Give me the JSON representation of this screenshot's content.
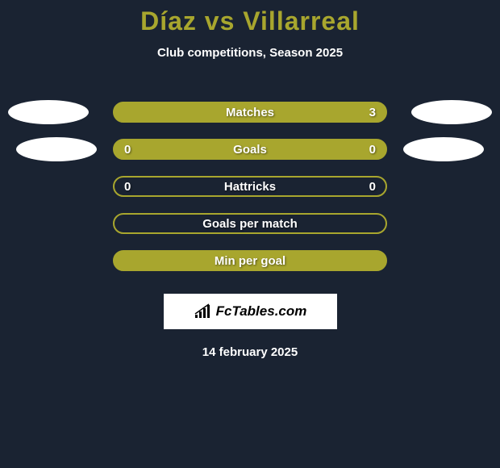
{
  "title_color": "#a8a62e",
  "player1": "Díaz",
  "vs_text": "vs",
  "player2": "Villarreal",
  "subtitle": "Club competitions, Season 2025",
  "background_color": "#1a2332",
  "text_color": "#ffffff",
  "side_ellipse_color": "#ffffff",
  "stats": [
    {
      "label": "Matches",
      "left_value": "",
      "right_value": "3",
      "fill_color": "#a8a62e",
      "border_color": "#a8a62e",
      "hollow": false
    },
    {
      "label": "Goals",
      "left_value": "0",
      "right_value": "0",
      "fill_color": "#a8a62e",
      "border_color": "#a8a62e",
      "hollow": false
    },
    {
      "label": "Hattricks",
      "left_value": "0",
      "right_value": "0",
      "fill_color": "transparent",
      "border_color": "#a8a62e",
      "hollow": true
    },
    {
      "label": "Goals per match",
      "left_value": "",
      "right_value": "",
      "fill_color": "transparent",
      "border_color": "#a8a62e",
      "hollow": true
    },
    {
      "label": "Min per goal",
      "left_value": "",
      "right_value": "",
      "fill_color": "#a8a62e",
      "border_color": "#a8a62e",
      "hollow": false
    }
  ],
  "logo_text": "FcTables.com",
  "date_text": "14 february 2025"
}
